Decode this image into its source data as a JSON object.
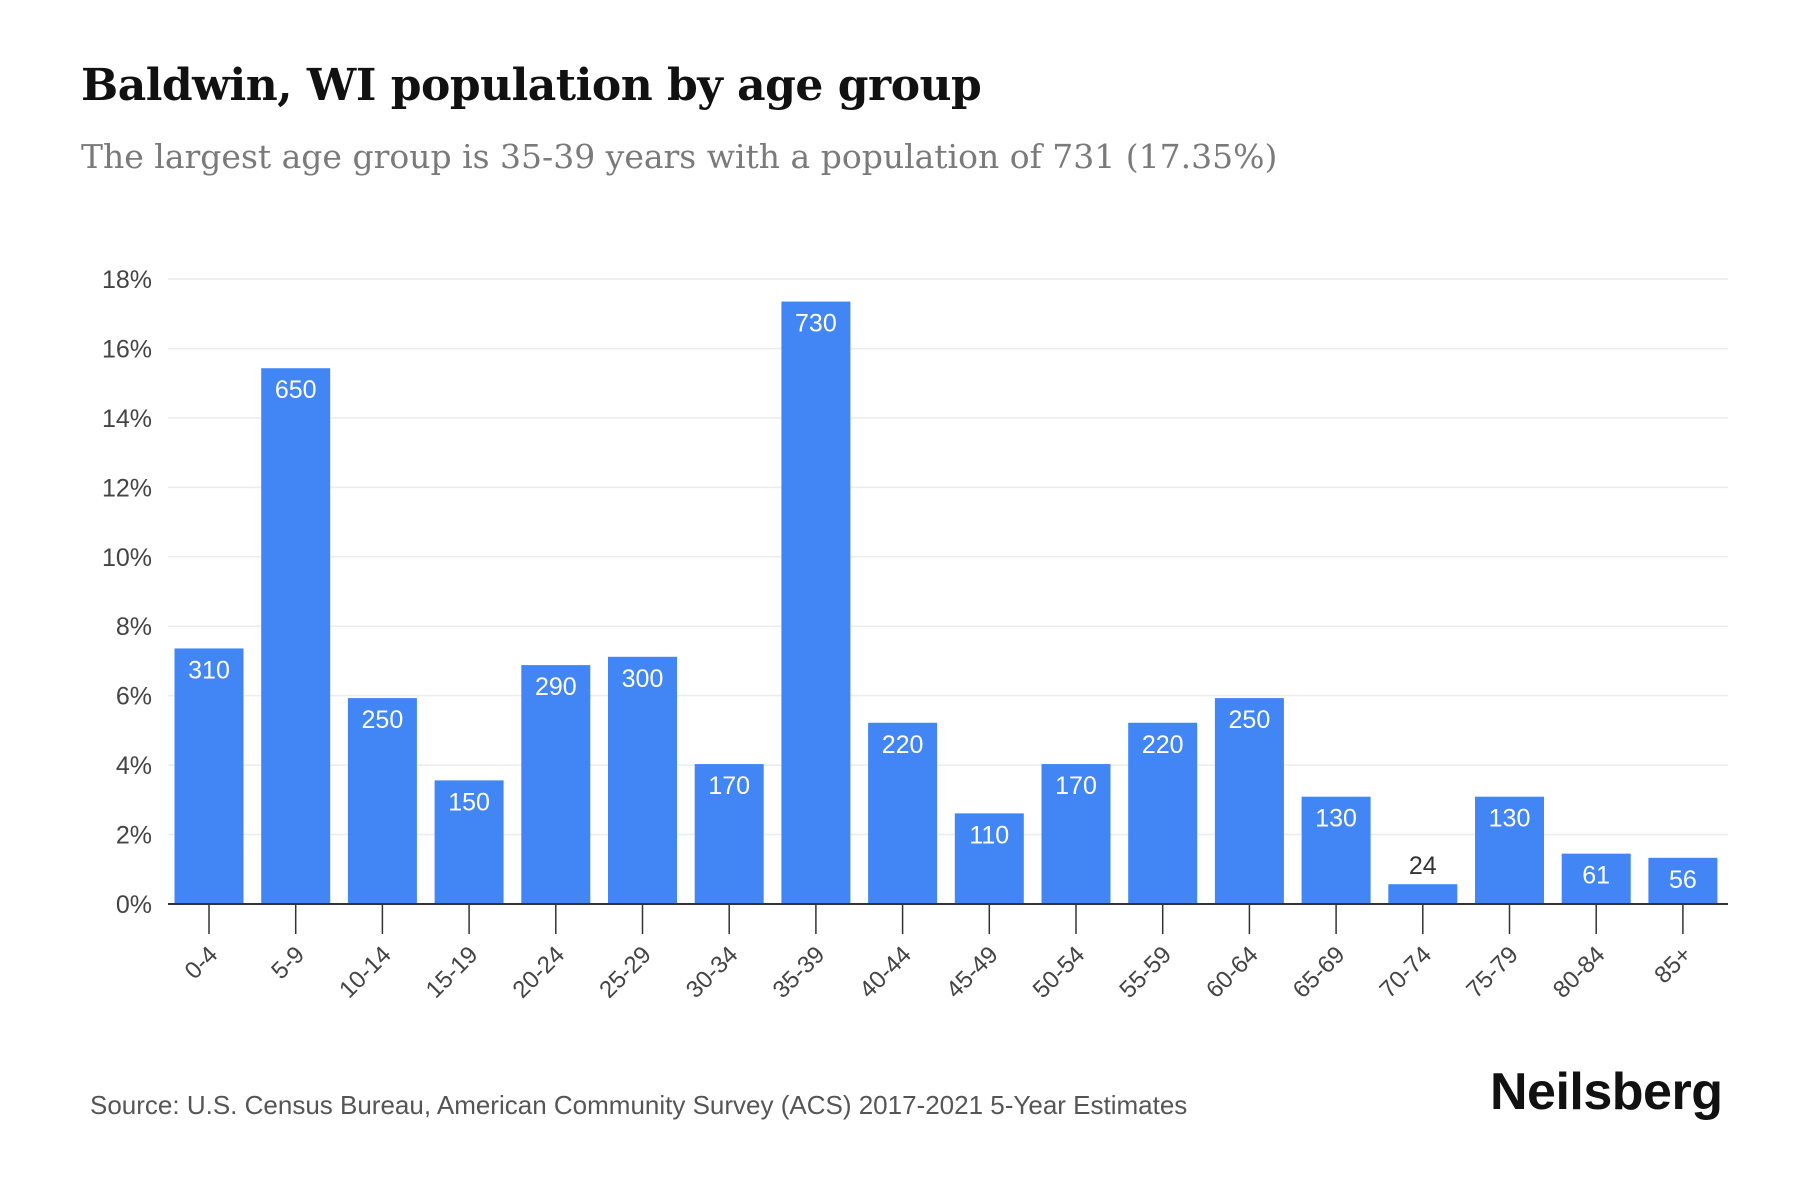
{
  "title": "Baldwin, WI population by age group",
  "subtitle": "The largest age group is 35-39 years with a population of 731 (17.35%)",
  "source": "Source: U.S. Census Bureau, American Community Survey (ACS) 2017-2021 5-Year Estimates",
  "brand": "Neilsberg",
  "colors": {
    "bar": "#4285f4",
    "grid": "#ececec",
    "axis": "#333333",
    "label_inside": "#ffffff",
    "label_outside": "#333333"
  },
  "chart_data": {
    "type": "bar",
    "categories": [
      "0-4",
      "5-9",
      "10-14",
      "15-19",
      "20-24",
      "25-29",
      "30-34",
      "35-39",
      "40-44",
      "45-49",
      "50-54",
      "55-59",
      "60-64",
      "65-69",
      "70-74",
      "75-79",
      "80-84",
      "85+"
    ],
    "values": [
      7.36,
      15.43,
      5.93,
      3.56,
      6.88,
      7.12,
      4.03,
      17.35,
      5.22,
      2.61,
      4.03,
      5.22,
      5.93,
      3.09,
      0.57,
      3.09,
      1.45,
      1.33
    ],
    "data_labels": [
      "310",
      "650",
      "250",
      "150",
      "290",
      "300",
      "170",
      "730",
      "220",
      "110",
      "170",
      "220",
      "250",
      "130",
      "24",
      "130",
      "61",
      "56"
    ],
    "y_ticks": [
      0,
      2,
      4,
      6,
      8,
      10,
      12,
      14,
      16,
      18
    ],
    "y_tick_labels": [
      "0%",
      "2%",
      "4%",
      "6%",
      "8%",
      "10%",
      "12%",
      "14%",
      "16%",
      "18%"
    ],
    "ylim": [
      0,
      18
    ],
    "xlabel": "",
    "ylabel": "",
    "grid": true,
    "legend": "none"
  }
}
